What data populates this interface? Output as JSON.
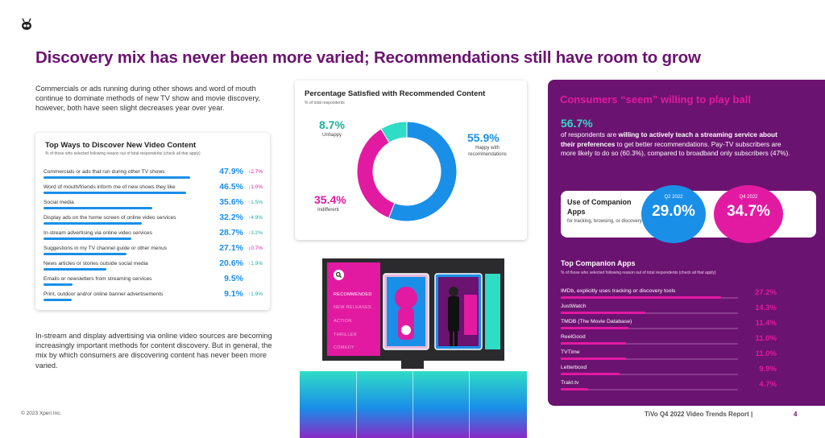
{
  "header": {
    "title": "Discovery mix has never been more varied; Recommendations still have room to grow"
  },
  "intro": "Commercials or ads running during other shows and word of mouth continue to dominate methods of new TV show and movie discovery, however, both have seen slight decreases year over year.",
  "outro": "In-stream and display advertising via online video sources are becoming increasingly important methods for content discovery. But in general, the mix by which consumers are discovering content has never been more varied.",
  "ways": {
    "title": "Top Ways to Discover New Video Content",
    "subtitle": "% of those who selected following reason out of total respondents (check all that apply)",
    "rows": [
      {
        "label": "Commercials or ads that run during other TV shows",
        "pct": "47.9%",
        "value": 47.9,
        "dir": "down",
        "chg": "2.7%"
      },
      {
        "label": "Word of mouth/friends inform me of new shows they like",
        "pct": "46.5%",
        "value": 46.5,
        "dir": "down",
        "chg": "1.0%"
      },
      {
        "label": "Social media",
        "pct": "35.6%",
        "value": 35.6,
        "dir": "up",
        "chg": "1.5%"
      },
      {
        "label": "Display ads on the home screen of online video services",
        "pct": "32.2%",
        "value": 32.2,
        "dir": "up",
        "chg": "4.9%"
      },
      {
        "label": "In-stream advertising via online video services",
        "pct": "28.7%",
        "value": 28.7,
        "dir": "up",
        "chg": "3.2%"
      },
      {
        "label": "Suggestions in my TV channel guide or other menus",
        "pct": "27.1%",
        "value": 27.1,
        "dir": "down",
        "chg": "0.7%"
      },
      {
        "label": "News articles or stories outside social media",
        "pct": "20.6%",
        "value": 20.6,
        "dir": "up",
        "chg": "1.9%"
      },
      {
        "label": "Emails or newsletters from streaming services",
        "pct": "9.5%",
        "value": 9.5,
        "dir": "",
        "chg": ""
      },
      {
        "label": "Print, outdoor and/or online banner advertisements",
        "pct": "9.1%",
        "value": 9.1,
        "dir": "up",
        "chg": "1.9%"
      }
    ]
  },
  "satisfied": {
    "title": "Percentage Satisfied with Recommended Content",
    "subtitle": "% of total respondents",
    "happy_pct": "55.9%",
    "happy_label": "Happy with recommendations",
    "indiff_pct": "35.4%",
    "indiff_label": "Indifferent",
    "unhappy_pct": "8.7%",
    "unhappy_label": "Unhappy"
  },
  "chart_data": {
    "type": "pie",
    "title": "Percentage Satisfied with Recommended Content",
    "categories": [
      "Happy with recommendations",
      "Indifferent",
      "Unhappy"
    ],
    "values": [
      55.9,
      35.4,
      8.7
    ],
    "colors": [
      "#1a8fe8",
      "#e21aa2",
      "#2fdcc6"
    ]
  },
  "tv": {
    "menu": [
      "RECOMMENDED",
      "NEW RELEASES",
      "ACTION",
      "THRILLER",
      "COMEDY"
    ]
  },
  "panel": {
    "title": "Consumers “seem” willing to play ball",
    "big": "56.7%",
    "text_pre": "of respondents are ",
    "text_bold": "willing to actively teach a streaming service about their preferences",
    "text_post": " to get better recommendations. Pay-TV subscribers are more likely to do so (60.3%), compared to broadband only subscribers (47%).",
    "companion_label": "Use of Companion Apps",
    "companion_sub": "for tracking, browsing, or discovery",
    "q2_label": "Q2 2022",
    "q2_value": "29.0%",
    "q4_label": "Q4 2022",
    "q4_value": "34.7%",
    "apps_title": "Top Companion Apps",
    "apps_subtitle": "% of those who selected following reason out of total respondents (check all that apply)",
    "apps": [
      {
        "name": "IMDb, explicitly uses tracking or discovery tools",
        "pct": "27.2%",
        "value": 27.2
      },
      {
        "name": "JustWatch",
        "pct": "14.3%",
        "value": 14.3
      },
      {
        "name": "TMDB (The Movie Database)",
        "pct": "11.4%",
        "value": 11.4
      },
      {
        "name": "ReelGood",
        "pct": "11.0%",
        "value": 11.0
      },
      {
        "name": "TVTime",
        "pct": "11.0%",
        "value": 11.0
      },
      {
        "name": "Letterboxd",
        "pct": "9.9%",
        "value": 9.9
      },
      {
        "name": "Trakt.tv",
        "pct": "4.7%",
        "value": 4.7
      }
    ]
  },
  "footer": {
    "copyright": "© 2023 Xperi Inc.",
    "report": "TiVo Q4 2022 Video Trends Report |",
    "page": "4"
  },
  "colors": {
    "purple": "#6b1370",
    "magenta": "#e21aa2",
    "blue": "#1a8fe8",
    "teal": "#2fdcc6"
  }
}
